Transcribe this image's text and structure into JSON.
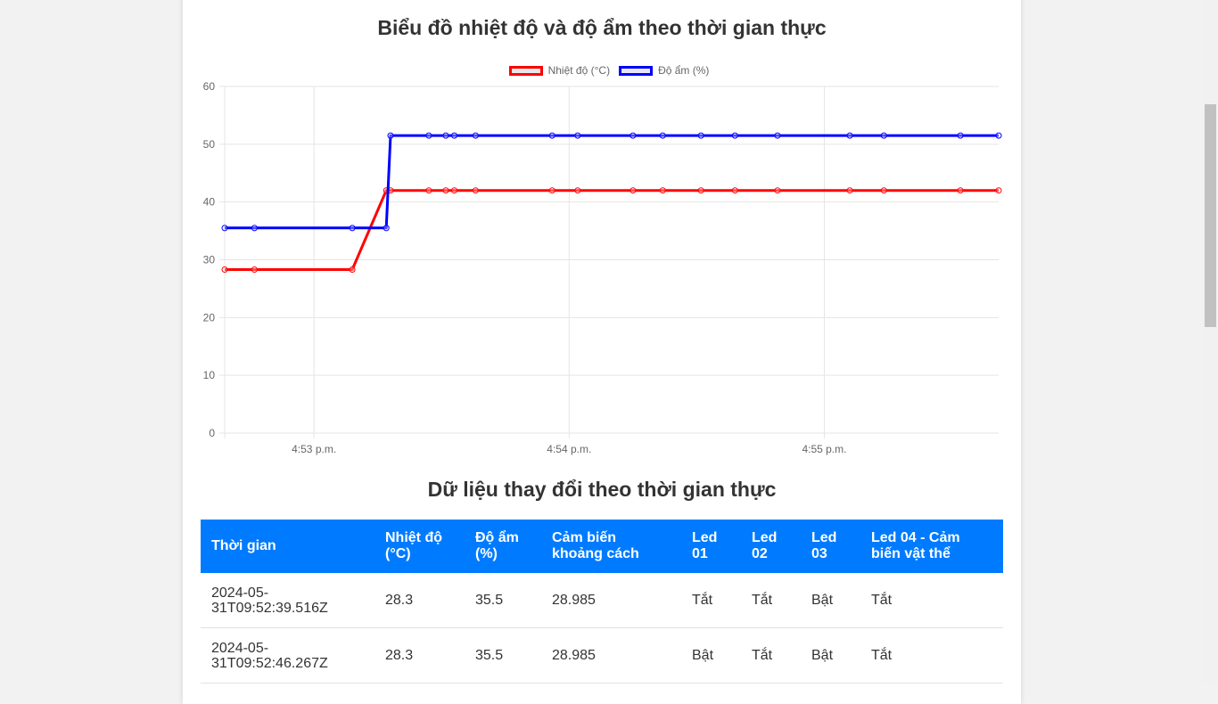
{
  "page": {
    "chart_title": "Biểu đồ nhiệt độ và độ ẩm theo thời gian thực",
    "table_title": "Dữ liệu thay đổi theo thời gian thực"
  },
  "chart_data": {
    "type": "line",
    "title": "Biểu đồ nhiệt độ và độ ẩm theo thời gian thực",
    "xlabel": "",
    "ylabel": "",
    "ylim": [
      0,
      60
    ],
    "yticks": [
      0,
      10,
      20,
      30,
      40,
      50,
      60
    ],
    "xticks": [
      "4:53 p.m.",
      "4:54 p.m.",
      "4:55 p.m."
    ],
    "xtick_times": [
      "16:53:00",
      "16:54:00",
      "16:55:00"
    ],
    "x": [
      "16:52:39",
      "16:52:46",
      "16:53:09",
      "16:53:17",
      "16:53:18",
      "16:53:27",
      "16:53:31",
      "16:53:33",
      "16:53:38",
      "16:53:56",
      "16:54:02",
      "16:54:15",
      "16:54:22",
      "16:54:31",
      "16:54:39",
      "16:54:49",
      "16:55:06",
      "16:55:14",
      "16:55:32",
      "16:55:41"
    ],
    "series": [
      {
        "name": "Nhiệt độ (°C)",
        "color": "#ff0000",
        "values": [
          28.3,
          28.3,
          28.3,
          42,
          42,
          42,
          42,
          42,
          42,
          42,
          42,
          42,
          42,
          42,
          42,
          42,
          42,
          42,
          42,
          42
        ]
      },
      {
        "name": "Độ ẩm (%)",
        "color": "#0000ff",
        "values": [
          35.5,
          35.5,
          35.5,
          35.5,
          51.5,
          51.5,
          51.5,
          51.5,
          51.5,
          51.5,
          51.5,
          51.5,
          51.5,
          51.5,
          51.5,
          51.5,
          51.5,
          51.5,
          51.5,
          51.5
        ]
      }
    ],
    "grid": true,
    "legend": "top"
  },
  "table": {
    "headers": [
      "Thời gian",
      "Nhiệt độ (°C)",
      "Độ ẩm (%)",
      "Cảm biến khoảng cách",
      "Led 01",
      "Led 02",
      "Led 03",
      "Led 04 - Cảm biến vật thể"
    ],
    "rows": [
      [
        "2024-05-31T09:52:39.516Z",
        "28.3",
        "35.5",
        "28.985",
        "Tắt",
        "Tắt",
        "Bật",
        "Tắt"
      ],
      [
        "2024-05-31T09:52:46.267Z",
        "28.3",
        "35.5",
        "28.985",
        "Bật",
        "Tắt",
        "Bật",
        "Tắt"
      ]
    ]
  }
}
